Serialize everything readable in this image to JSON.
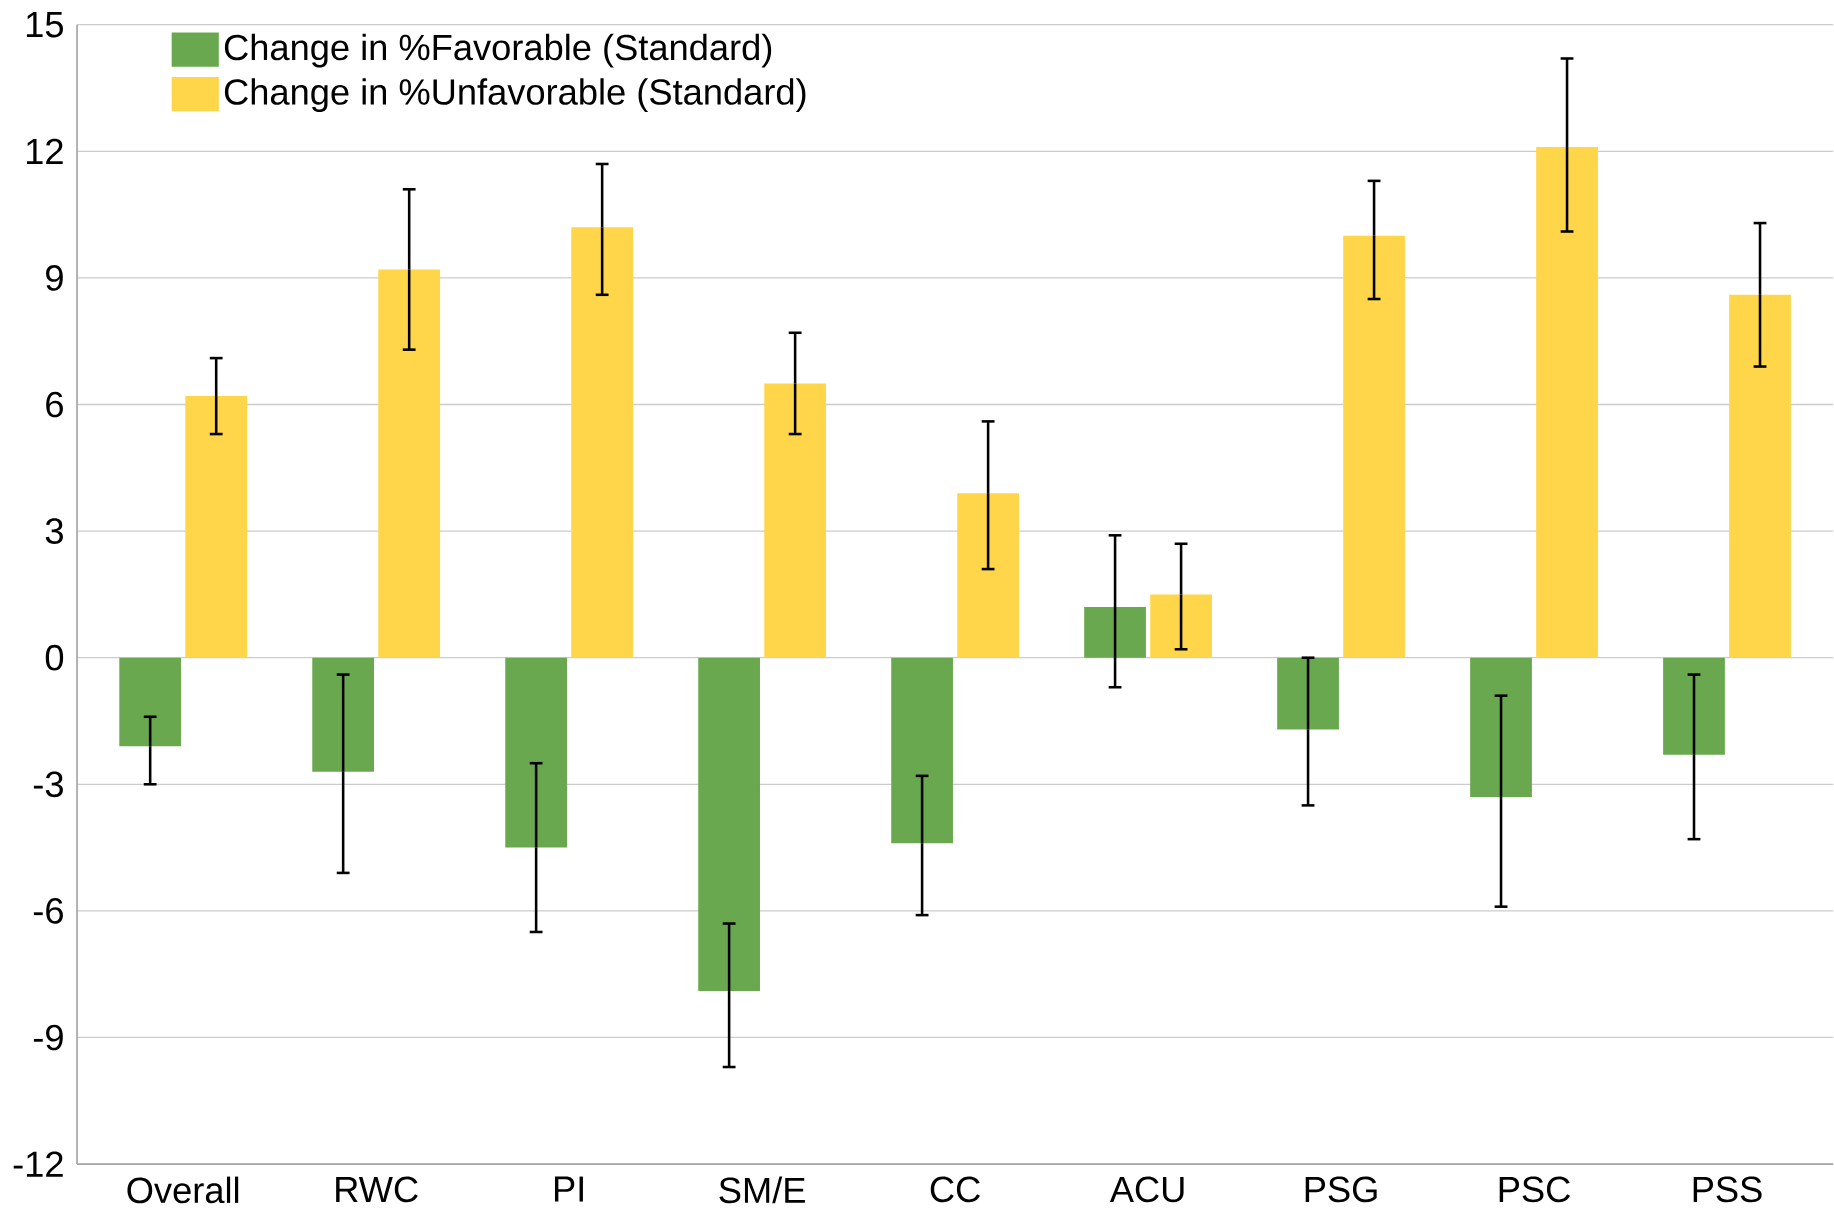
{
  "chart_data": {
    "type": "bar",
    "categories": [
      "Overall",
      "RWC",
      "PI",
      "SM/E",
      "CC",
      "ACU",
      "PSG",
      "PSC",
      "PSS"
    ],
    "series": [
      {
        "name": "Change in %Favorable (Standard)",
        "color": "#6aa84f",
        "values": [
          -2.1,
          -2.7,
          -4.5,
          -7.9,
          -4.4,
          1.2,
          -1.7,
          -3.3,
          -2.3
        ],
        "errors": [
          [
            -3.0,
            -1.4
          ],
          [
            -5.1,
            -0.4
          ],
          [
            -6.5,
            -2.5
          ],
          [
            -9.7,
            -6.3
          ],
          [
            -6.1,
            -2.8
          ],
          [
            -0.7,
            2.9
          ],
          [
            -3.5,
            0.0
          ],
          [
            -5.9,
            -0.9
          ],
          [
            -4.3,
            -0.4
          ]
        ]
      },
      {
        "name": "Change in %Unfavorable (Standard)",
        "color": "#ffd54a",
        "values": [
          6.2,
          9.2,
          10.2,
          6.5,
          3.9,
          1.5,
          10.0,
          12.1,
          8.6
        ],
        "errors": [
          [
            5.3,
            7.1
          ],
          [
            7.3,
            11.1
          ],
          [
            8.6,
            11.7
          ],
          [
            5.3,
            7.7
          ],
          [
            2.1,
            5.6
          ],
          [
            0.2,
            2.7
          ],
          [
            8.5,
            11.3
          ],
          [
            10.1,
            14.2
          ],
          [
            6.9,
            10.3
          ]
        ]
      }
    ],
    "ylim": [
      -12,
      15
    ],
    "yticks": [
      -12,
      -9,
      -6,
      -3,
      0,
      3,
      6,
      9,
      12,
      15
    ],
    "grid": "y",
    "legend": "top left"
  }
}
